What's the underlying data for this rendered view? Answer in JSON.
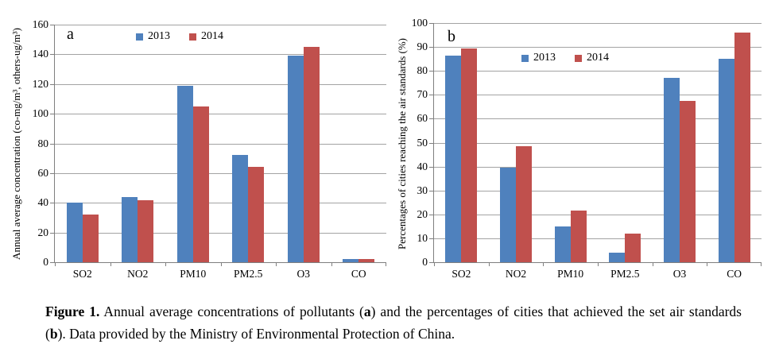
{
  "figure": {
    "caption_segments": [
      {
        "text": "Figure 1.",
        "bold": true
      },
      {
        "text": " Annual average concentrations of pollutants (",
        "bold": false
      },
      {
        "text": "a",
        "bold": true
      },
      {
        "text": ") and the percentages of cities that achieved the set air standards (",
        "bold": false
      },
      {
        "text": "b",
        "bold": true
      },
      {
        "text": "). Data provided by the Ministry of Environmental Protection of China.",
        "bold": false
      }
    ]
  },
  "chart_data": [
    {
      "type": "bar",
      "panel_label": "a",
      "categories": [
        "SO2",
        "NO2",
        "PM10",
        "PM2.5",
        "O3",
        "CO"
      ],
      "series": [
        {
          "name": "2013",
          "color": "#4F81BD",
          "values": [
            40,
            44,
            119,
            72,
            139,
            2
          ]
        },
        {
          "name": "2014",
          "color": "#C0504D",
          "values": [
            32,
            42,
            105,
            64,
            145,
            2
          ]
        }
      ],
      "xlabel": "",
      "ylabel": "Annual average concentration (co-mg/m³, others-ug/m³)",
      "ylim": [
        0,
        160
      ],
      "ytick_step": 20,
      "grid": true,
      "legend_position": "inside-top-center"
    },
    {
      "type": "bar",
      "panel_label": "b",
      "categories": [
        "SO2",
        "NO2",
        "PM10",
        "PM2.5",
        "O3",
        "CO"
      ],
      "series": [
        {
          "name": "2013",
          "color": "#4F81BD",
          "values": [
            86.5,
            39.5,
            15,
            4,
            77,
            85
          ]
        },
        {
          "name": "2014",
          "color": "#C0504D",
          "values": [
            89.5,
            48.5,
            21.5,
            12,
            67.5,
            96
          ]
        }
      ],
      "xlabel": "",
      "ylabel": "Percentages of cities reaching the air standards (%)",
      "ylim": [
        0,
        100
      ],
      "ytick_step": 10,
      "grid": true,
      "legend_position": "inside-top-center"
    }
  ],
  "colors": {
    "series_2013": "#4F81BD",
    "series_2014": "#C0504D",
    "gridline": "#A3A3A3",
    "axis": "#7F7F7F",
    "background": "#FFFFFF",
    "text": "#000000"
  }
}
